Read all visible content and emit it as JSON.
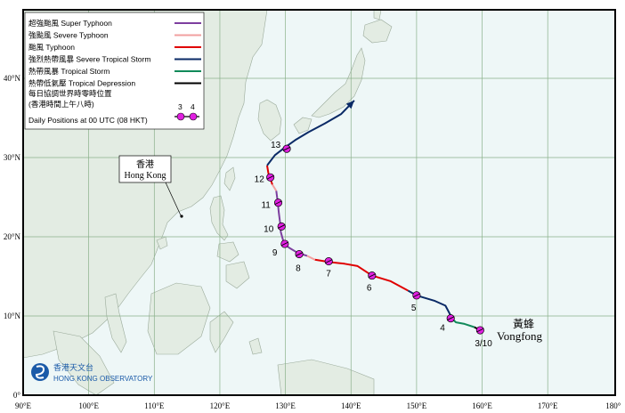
{
  "map": {
    "lon_ticks": [
      "90°E",
      "100°E",
      "110°E",
      "120°E",
      "130°E",
      "140°E",
      "150°E",
      "160°E",
      "170°E",
      "180°"
    ],
    "lat_ticks": [
      "0°",
      "10°N",
      "20°N",
      "30°N",
      "40°N"
    ],
    "colors": {
      "sea": "#eef7f7",
      "land": "#e3ece3",
      "coast": "#9aaa9a",
      "grid": "#8ab08a",
      "super_typhoon": "#7d3f9f",
      "severe_typhoon": "#f2a0a0",
      "typhoon": "#e00000",
      "severe_tropical_storm": "#0a2a66",
      "tropical_storm": "#118a5a",
      "tropical_depression": "#000000",
      "marker": "#e020e0"
    }
  },
  "legend": {
    "items": [
      {
        "label": "超強颱風  Super Typhoon",
        "color": "#7d3f9f"
      },
      {
        "label": "強颱風  Severe Typhoon",
        "color": "#f2a0a0"
      },
      {
        "label": "颱風  Typhoon",
        "color": "#e00000"
      },
      {
        "label": "強烈熱帶風暴  Severe Tropical Storm",
        "color": "#0a2a66"
      },
      {
        "label": "熱帶風暴  Tropical Storm",
        "color": "#118a5a"
      },
      {
        "label": "熱帶低氣壓  Tropical Depression",
        "color": "#000000"
      }
    ],
    "daily_zh_1": "每日協調世界時零時位置",
    "daily_zh_2": "(香港時間上午八時)",
    "daily_en": "Daily Positions at 00 UTC (08 HKT)",
    "sample_day_1": "3",
    "sample_day_2": "4"
  },
  "labels": {
    "hk_zh": "香港",
    "hk_en": "Hong Kong",
    "storm_zh": "黃蜂",
    "storm_en": "Vongfong",
    "observatory_zh": "香港天文台",
    "observatory_en": "HONG KONG OBSERVATORY"
  },
  "track": {
    "segments": [
      {
        "cat": "tropical_depression",
        "pts": [
          [
            159.7,
            8.2
          ],
          [
            158.8,
            8.6
          ]
        ]
      },
      {
        "cat": "tropical_storm",
        "pts": [
          [
            158.8,
            8.6
          ],
          [
            157.3,
            9.0
          ],
          [
            156.0,
            9.2
          ],
          [
            155.5,
            9.6
          ]
        ]
      },
      {
        "cat": "severe_tropical_storm",
        "pts": [
          [
            155.5,
            9.6
          ],
          [
            154.4,
            11.3
          ],
          [
            152.8,
            11.9
          ],
          [
            150.0,
            12.6
          ],
          [
            148.7,
            13.2
          ]
        ]
      },
      {
        "cat": "typhoon",
        "pts": [
          [
            148.7,
            13.2
          ],
          [
            146.0,
            14.4
          ],
          [
            143.2,
            15.1
          ],
          [
            141.0,
            16.3
          ],
          [
            139.0,
            16.6
          ],
          [
            136.8,
            16.8
          ],
          [
            134.5,
            17.1
          ]
        ]
      },
      {
        "cat": "severe_typhoon",
        "pts": [
          [
            134.5,
            17.1
          ],
          [
            133.3,
            17.6
          ]
        ]
      },
      {
        "cat": "super_typhoon",
        "pts": [
          [
            133.3,
            17.6
          ],
          [
            131.8,
            18.0
          ],
          [
            130.6,
            18.6
          ],
          [
            129.8,
            19.1
          ],
          [
            129.3,
            20.6
          ],
          [
            129.2,
            21.7
          ],
          [
            129.0,
            23.0
          ],
          [
            128.8,
            24.5
          ],
          [
            128.6,
            25.8
          ]
        ]
      },
      {
        "cat": "severe_typhoon",
        "pts": [
          [
            128.6,
            25.8
          ],
          [
            128.0,
            26.6
          ]
        ]
      },
      {
        "cat": "typhoon",
        "pts": [
          [
            128.0,
            26.6
          ],
          [
            127.4,
            28.0
          ],
          [
            127.2,
            29.0
          ]
        ]
      },
      {
        "cat": "severe_tropical_storm",
        "pts": [
          [
            127.2,
            29.0
          ],
          [
            128.4,
            30.3
          ],
          [
            129.8,
            31.2
          ],
          [
            131.5,
            32.2
          ],
          [
            133.5,
            33.2
          ],
          [
            136.0,
            34.3
          ],
          [
            138.5,
            35.5
          ],
          [
            140.5,
            37.2
          ]
        ]
      }
    ],
    "daily_points": [
      {
        "lon": 159.7,
        "lat": 8.2,
        "label": "3/10",
        "dx": -6,
        "dy": 18
      },
      {
        "lon": 155.2,
        "lat": 9.7,
        "label": "4",
        "dx": -12,
        "dy": 14
      },
      {
        "lon": 150.0,
        "lat": 12.6,
        "label": "5",
        "dx": -6,
        "dy": 17
      },
      {
        "lon": 143.2,
        "lat": 15.1,
        "label": "6",
        "dx": -6,
        "dy": 17
      },
      {
        "lon": 136.6,
        "lat": 16.9,
        "label": "7",
        "dx": -3,
        "dy": 17
      },
      {
        "lon": 132.1,
        "lat": 17.8,
        "label": "8",
        "dx": -4,
        "dy": 19
      },
      {
        "lon": 129.9,
        "lat": 19.1,
        "label": "9",
        "dx": -14,
        "dy": 13
      },
      {
        "lon": 129.4,
        "lat": 21.3,
        "label": "10",
        "dx": -20,
        "dy": 6
      },
      {
        "lon": 128.9,
        "lat": 24.3,
        "label": "11",
        "dx": -19,
        "dy": 6
      },
      {
        "lon": 127.7,
        "lat": 27.5,
        "label": "12",
        "dx": -18,
        "dy": 5
      },
      {
        "lon": 130.2,
        "lat": 31.1,
        "label": "13",
        "dx": -18,
        "dy": -1
      }
    ]
  }
}
